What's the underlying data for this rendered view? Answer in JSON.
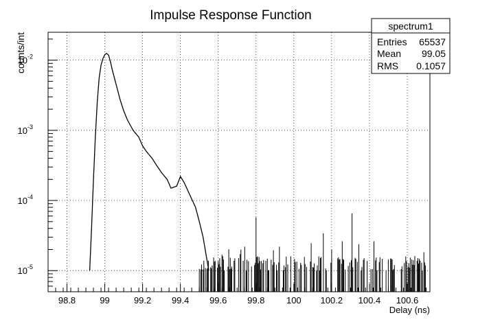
{
  "chart_data": {
    "type": "line",
    "title": "Impulse Response Function",
    "xlabel": "Delay (ns)",
    "ylabel": "counts/int",
    "xlim": [
      98.7,
      100.72
    ],
    "ylim": [
      5e-06,
      0.025
    ],
    "log_y": true,
    "grid": true,
    "x_ticks": [
      98.8,
      99,
      99.2,
      99.4,
      99.6,
      99.8,
      100,
      100.2,
      100.4,
      100.6
    ],
    "x_tick_labels": [
      "98.8",
      "99",
      "99.2",
      "99.4",
      "99.6",
      "99.8",
      "100",
      "100.2",
      "100.4",
      "100.6"
    ],
    "y_ticks": [
      {
        "value": 1e-05,
        "base": "10",
        "exp": "-5"
      },
      {
        "value": 0.0001,
        "base": "10",
        "exp": "-4"
      },
      {
        "value": 0.001,
        "base": "10",
        "exp": "-3"
      },
      {
        "value": 0.01,
        "base": "10",
        "exp": "-2"
      }
    ],
    "series": [
      {
        "name": "spectrum1",
        "style": "histogram",
        "x": [
          98.92,
          98.93,
          98.94,
          98.95,
          98.96,
          98.97,
          98.98,
          98.99,
          99.0,
          99.01,
          99.02,
          99.03,
          99.04,
          99.06,
          99.08,
          99.1,
          99.12,
          99.15,
          99.18,
          99.2,
          99.22,
          99.25,
          99.28,
          99.3,
          99.33,
          99.35,
          99.38,
          99.4,
          99.42,
          99.45,
          99.48,
          99.5,
          99.52,
          99.55
        ],
        "y": [
          1e-05,
          4e-05,
          0.0002,
          0.0008,
          0.0025,
          0.0055,
          0.0085,
          0.0105,
          0.012,
          0.0125,
          0.0118,
          0.0095,
          0.0072,
          0.0045,
          0.0028,
          0.0019,
          0.0014,
          0.001,
          0.0008,
          0.0006,
          0.0005,
          0.0004,
          0.0003,
          0.00025,
          0.0002,
          0.00015,
          0.00016,
          0.00022,
          0.00018,
          0.00012,
          8e-05,
          5e-05,
          3e-05,
          1e-05
        ],
        "tail_x": [
          99.5,
          100.7
        ],
        "tail_y": [
          1e-05,
          7e-05
        ]
      }
    ],
    "stats_box": {
      "title": "spectrum1",
      "rows": [
        {
          "label": "Entries",
          "value": "65537"
        },
        {
          "label": "Mean",
          "value": "99.05"
        },
        {
          "label": "RMS",
          "value": "0.1057"
        }
      ]
    }
  }
}
